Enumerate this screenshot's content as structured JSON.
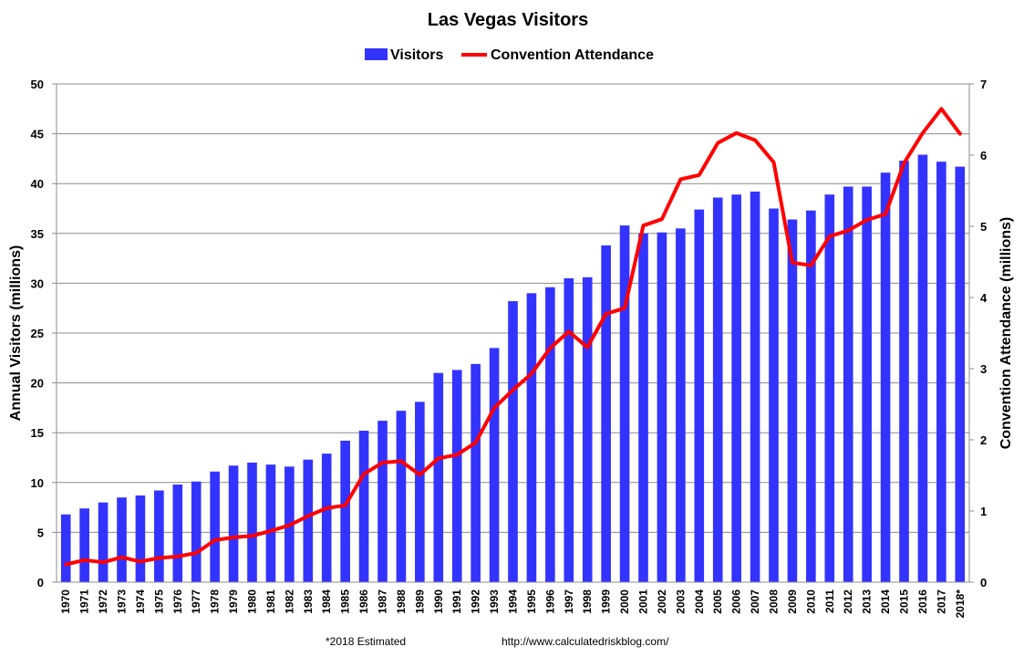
{
  "chart_data": {
    "type": "bar+line",
    "title": "Las Vegas Visitors",
    "categories": [
      "1970",
      "1971",
      "1972",
      "1973",
      "1974",
      "1975",
      "1976",
      "1977",
      "1978",
      "1979",
      "1980",
      "1981",
      "1982",
      "1983",
      "1984",
      "1985",
      "1986",
      "1987",
      "1988",
      "1989",
      "1990",
      "1991",
      "1992",
      "1993",
      "1994",
      "1995",
      "1996",
      "1997",
      "1998",
      "1999",
      "2000",
      "2001",
      "2002",
      "2003",
      "2004",
      "2005",
      "2006",
      "2007",
      "2008",
      "2009",
      "2010",
      "2011",
      "2012",
      "2013",
      "2014",
      "2015",
      "2016",
      "2017",
      "2018*"
    ],
    "series": [
      {
        "name": "Visitors",
        "type": "bar",
        "axis": "left",
        "color": "#3333ff",
        "values": [
          6.8,
          7.4,
          8.0,
          8.5,
          8.7,
          9.2,
          9.8,
          10.1,
          11.1,
          11.7,
          12.0,
          11.8,
          11.6,
          12.3,
          12.9,
          14.2,
          15.2,
          16.2,
          17.2,
          18.1,
          21.0,
          21.3,
          21.9,
          23.5,
          28.2,
          29.0,
          29.6,
          30.5,
          30.6,
          33.8,
          35.8,
          35.0,
          35.1,
          35.5,
          37.4,
          38.6,
          38.9,
          39.2,
          37.5,
          36.4,
          37.3,
          38.9,
          39.7,
          39.7,
          41.1,
          42.3,
          42.9,
          42.2,
          41.7
        ]
      },
      {
        "name": "Convention Attendance",
        "type": "line",
        "axis": "right",
        "color": "#ff0000",
        "values": [
          0.25,
          0.31,
          0.28,
          0.35,
          0.29,
          0.34,
          0.36,
          0.41,
          0.59,
          0.63,
          0.65,
          0.72,
          0.8,
          0.93,
          1.04,
          1.08,
          1.52,
          1.68,
          1.7,
          1.51,
          1.74,
          1.79,
          1.96,
          2.45,
          2.7,
          2.93,
          3.29,
          3.52,
          3.3,
          3.77,
          3.85,
          5.01,
          5.1,
          5.66,
          5.72,
          6.17,
          6.31,
          6.21,
          5.9,
          4.49,
          4.45,
          4.86,
          4.94,
          5.09,
          5.17,
          5.89,
          6.31,
          6.65,
          6.3
        ]
      }
    ],
    "ylabel": "Annual Visitors (millions)",
    "ylim": [
      0,
      50
    ],
    "yticks": [
      "0",
      "5",
      "10",
      "15",
      "20",
      "25",
      "30",
      "35",
      "40",
      "45",
      "50"
    ],
    "y2label": "Convention Attendance (millions)",
    "y2lim": [
      0,
      7
    ],
    "y2ticks": [
      "0",
      "1",
      "2",
      "3",
      "4",
      "5",
      "6",
      "7"
    ],
    "grid": true,
    "legend_position": "top-center"
  },
  "footer": {
    "note": "*2018 Estimated",
    "source": "http://www.calculatedriskblog.com/"
  }
}
